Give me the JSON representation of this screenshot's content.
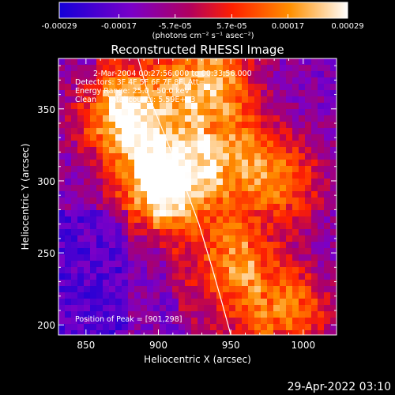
{
  "chart_data": {
    "type": "heatmap",
    "colorbar": {
      "ticks": [
        "-0.00029",
        "-0.00017",
        "-5.7e-05",
        "5.7e-05",
        "0.00017",
        "0.00029"
      ],
      "tick_values": [
        -0.00029,
        -0.00017,
        -5.7e-05,
        5.7e-05,
        0.00017,
        0.00029
      ],
      "range": [
        -0.00029,
        0.00029
      ],
      "unit_label": "(photons cm⁻² s⁻¹ asec⁻²)",
      "colors": [
        "#1400d8",
        "#7a00c8",
        "#b00060",
        "#ff2000",
        "#ff9000",
        "#ffffff"
      ]
    },
    "title": "Reconstructed RHESSI Image",
    "info_lines": [
      "2-Mar-2004 00:27:56.000 to 00:33:56.000",
      "Detectors: 3F 4F 5F 6F 7F 8F, Att=",
      "Energy Range: 25.0 - 50.0 keV",
      "Clean     Total counts: 5.59E+03"
    ],
    "peak_label": "Position of Peak = [901,298]",
    "peak_position": [
      901,
      298
    ],
    "xlabel": "Heliocentric X (arcsec)",
    "ylabel": "Heliocentric Y (arcsec)",
    "xticks": [
      "850",
      "900",
      "950",
      "1000"
    ],
    "xtick_values": [
      850,
      900,
      950,
      1000
    ],
    "yticks": [
      "200",
      "250",
      "300",
      "350"
    ],
    "ytick_values": [
      200,
      250,
      300,
      350
    ],
    "xlim": [
      831,
      1023
    ],
    "ylim": [
      193,
      385
    ],
    "limb": [
      [
        886,
        385
      ],
      [
        893,
        360
      ],
      [
        905,
        330
      ],
      [
        917,
        300
      ],
      [
        928,
        270
      ],
      [
        937,
        240
      ],
      [
        944,
        215
      ],
      [
        950,
        193
      ]
    ],
    "bright_sources": [
      {
        "x": 902,
        "y": 298,
        "level": 1.0
      },
      {
        "x": 875,
        "y": 345,
        "level": 0.85
      },
      {
        "x": 935,
        "y": 370,
        "level": 0.8
      },
      {
        "x": 985,
        "y": 300,
        "level": 0.55
      },
      {
        "x": 990,
        "y": 210,
        "level": 0.6
      },
      {
        "x": 950,
        "y": 320,
        "level": 0.55
      },
      {
        "x": 955,
        "y": 245,
        "level": 0.5
      }
    ]
  },
  "footer": {
    "timestamp": "29-Apr-2022 03:10"
  }
}
